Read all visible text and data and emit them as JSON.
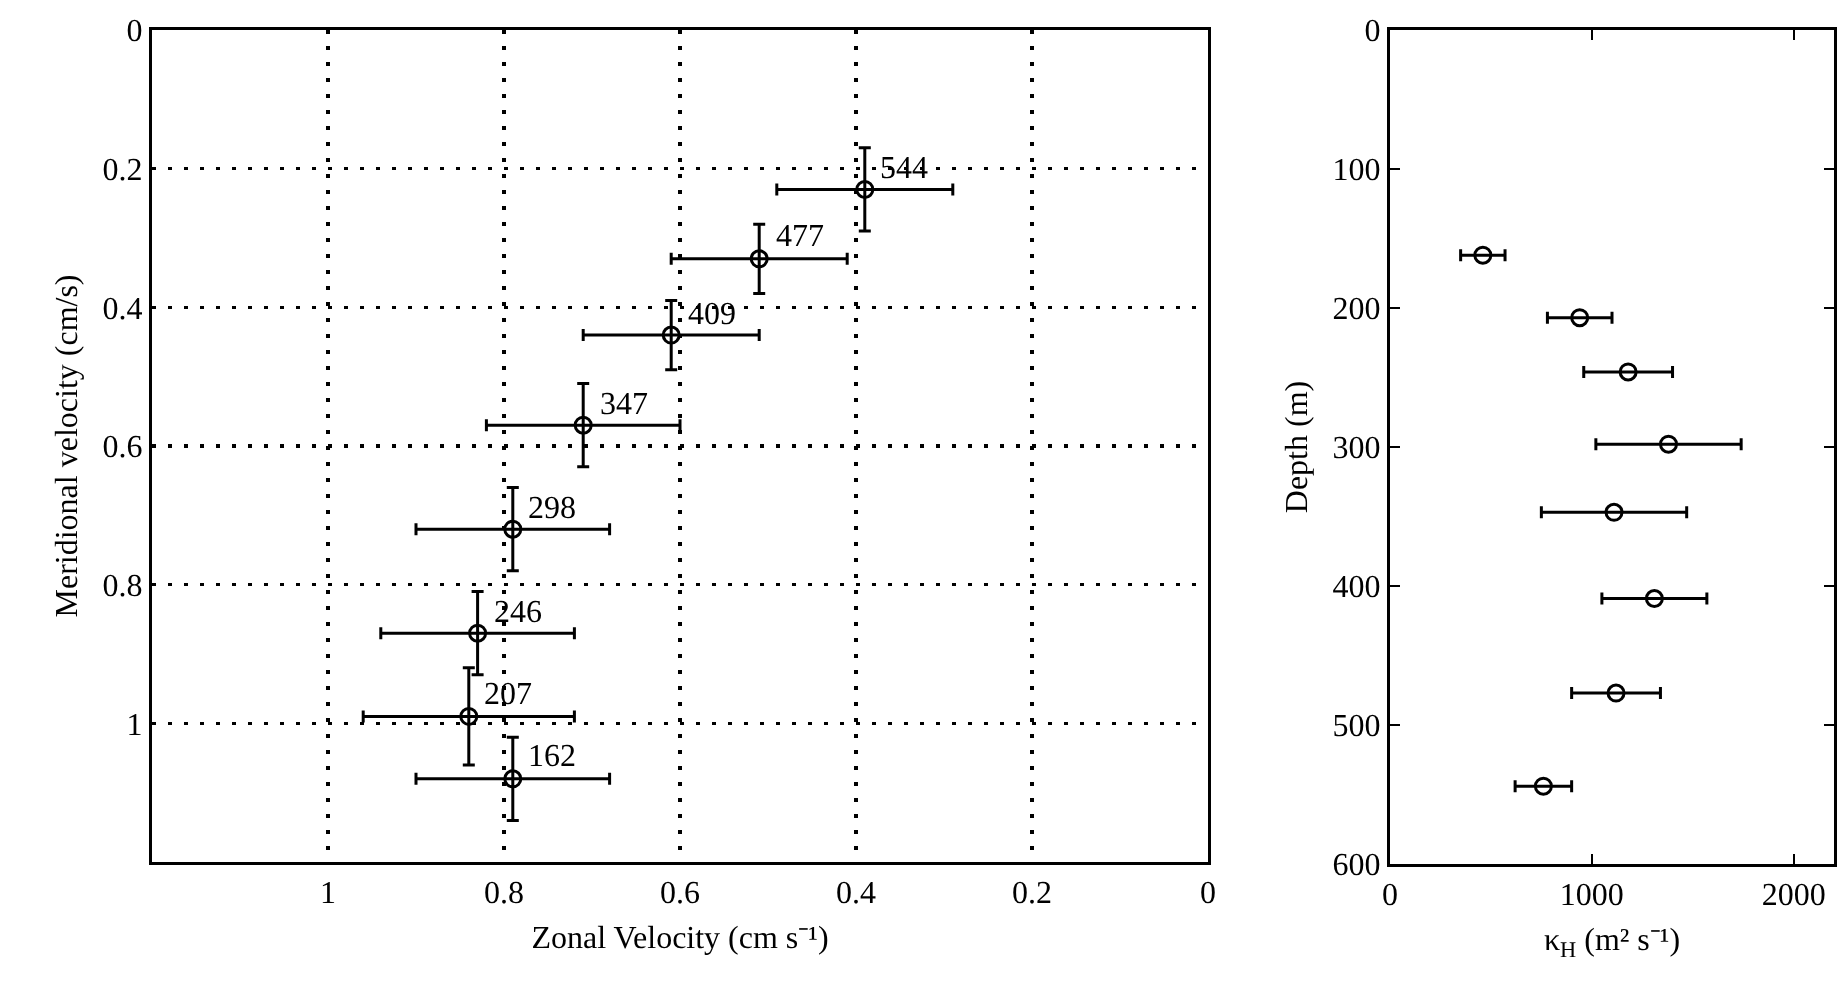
{
  "chart_data": [
    {
      "type": "scatter",
      "xlabel": "Zonal Velocity (cm s⁻¹)",
      "ylabel": "Meridional velocity (cm/s)",
      "xlim": [
        1.2,
        0
      ],
      "xticks": [
        1,
        0.8,
        0.6,
        0.4,
        0.2,
        0
      ],
      "ylim": [
        1.2,
        0
      ],
      "yticks": [
        0,
        0.2,
        0.4,
        0.6,
        0.8,
        1
      ],
      "grid": true,
      "marker": "circle",
      "x": [
        0.39,
        0.51,
        0.61,
        0.71,
        0.79,
        0.83,
        0.84,
        0.79
      ],
      "values": [
        0.23,
        0.33,
        0.44,
        0.57,
        0.72,
        0.87,
        0.99,
        1.08
      ],
      "xerrors": [
        0.1,
        0.1,
        0.1,
        0.11,
        0.11,
        0.11,
        0.12,
        0.11
      ],
      "errors": [
        0.06,
        0.05,
        0.05,
        0.06,
        0.06,
        0.06,
        0.07,
        0.06
      ],
      "annotations": [
        {
          "text": "544",
          "x": 0.39,
          "y": 0.23
        },
        {
          "text": "477",
          "x": 0.51,
          "y": 0.33
        },
        {
          "text": "409",
          "x": 0.61,
          "y": 0.44
        },
        {
          "text": "347",
          "x": 0.71,
          "y": 0.57
        },
        {
          "text": "298",
          "x": 0.79,
          "y": 0.72
        },
        {
          "text": "246",
          "x": 0.83,
          "y": 0.87
        },
        {
          "text": "207",
          "x": 0.84,
          "y": 0.99
        },
        {
          "text": "162",
          "x": 0.79,
          "y": 1.08
        }
      ]
    },
    {
      "type": "scatter",
      "xlabel": "κ$_{H}$ (m² s⁻¹)",
      "ylabel": "Depth (m)",
      "xlim": [
        0,
        2200
      ],
      "xticks": [
        0,
        1000,
        2000
      ],
      "ylim": [
        600,
        0
      ],
      "yticks": [
        0,
        100,
        200,
        300,
        400,
        500,
        600
      ],
      "grid": false,
      "marker": "circle",
      "x": [
        460,
        940,
        1180,
        1380,
        1110,
        1310,
        1120,
        760
      ],
      "values": [
        162,
        207,
        246,
        298,
        347,
        409,
        477,
        544
      ],
      "xerrors": [
        110,
        160,
        220,
        360,
        360,
        260,
        220,
        140
      ]
    }
  ]
}
